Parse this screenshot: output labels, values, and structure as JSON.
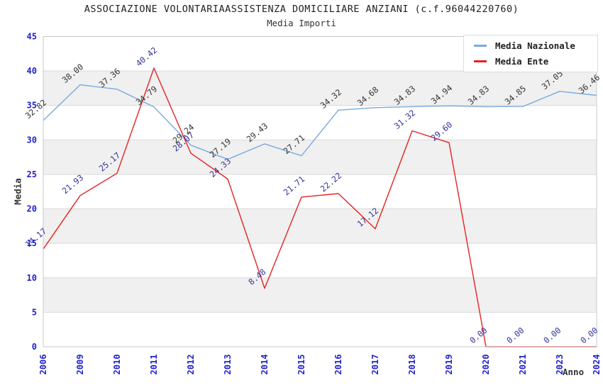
{
  "chart_data": {
    "type": "line",
    "title": "ASSOCIAZIONE VOLONTARIAASSISTENZA DOMICILIARE ANZIANI (c.f.96044220760)",
    "subtitle": "Media Importi",
    "xlabel": "Anno",
    "ylabel": "Media",
    "categories": [
      "2006",
      "2009",
      "2010",
      "2011",
      "2012",
      "2013",
      "2014",
      "2015",
      "2016",
      "2017",
      "2018",
      "2019",
      "2020",
      "2021",
      "2023",
      "2024"
    ],
    "series": [
      {
        "name": "Media Nazionale",
        "color": "#79aadc",
        "label_color": "#333333",
        "values": [
          32.82,
          38.0,
          37.36,
          34.79,
          29.24,
          27.19,
          29.43,
          27.71,
          34.32,
          34.68,
          34.83,
          34.94,
          34.83,
          34.85,
          37.05,
          36.46
        ]
      },
      {
        "name": "Media Ente",
        "color": "#e62222",
        "label_color": "#333399",
        "values": [
          14.17,
          21.93,
          25.17,
          40.42,
          28.07,
          24.33,
          8.48,
          21.71,
          22.22,
          17.12,
          31.32,
          29.6,
          0.0,
          0.0,
          0.0,
          0.0
        ]
      }
    ],
    "ylim": [
      0,
      45
    ],
    "ytick_step": 5,
    "yticks": [
      0,
      5,
      10,
      15,
      20,
      25,
      30,
      35,
      40,
      45
    ],
    "grid": true,
    "legend_position": "top-right",
    "style": {
      "tick_label_color": "#2222cc",
      "band_color": "#f0f0f0",
      "gridline_color": "#d9d9d9",
      "plot_border_color": "#c8c8c8",
      "title_color": "#222222"
    }
  }
}
